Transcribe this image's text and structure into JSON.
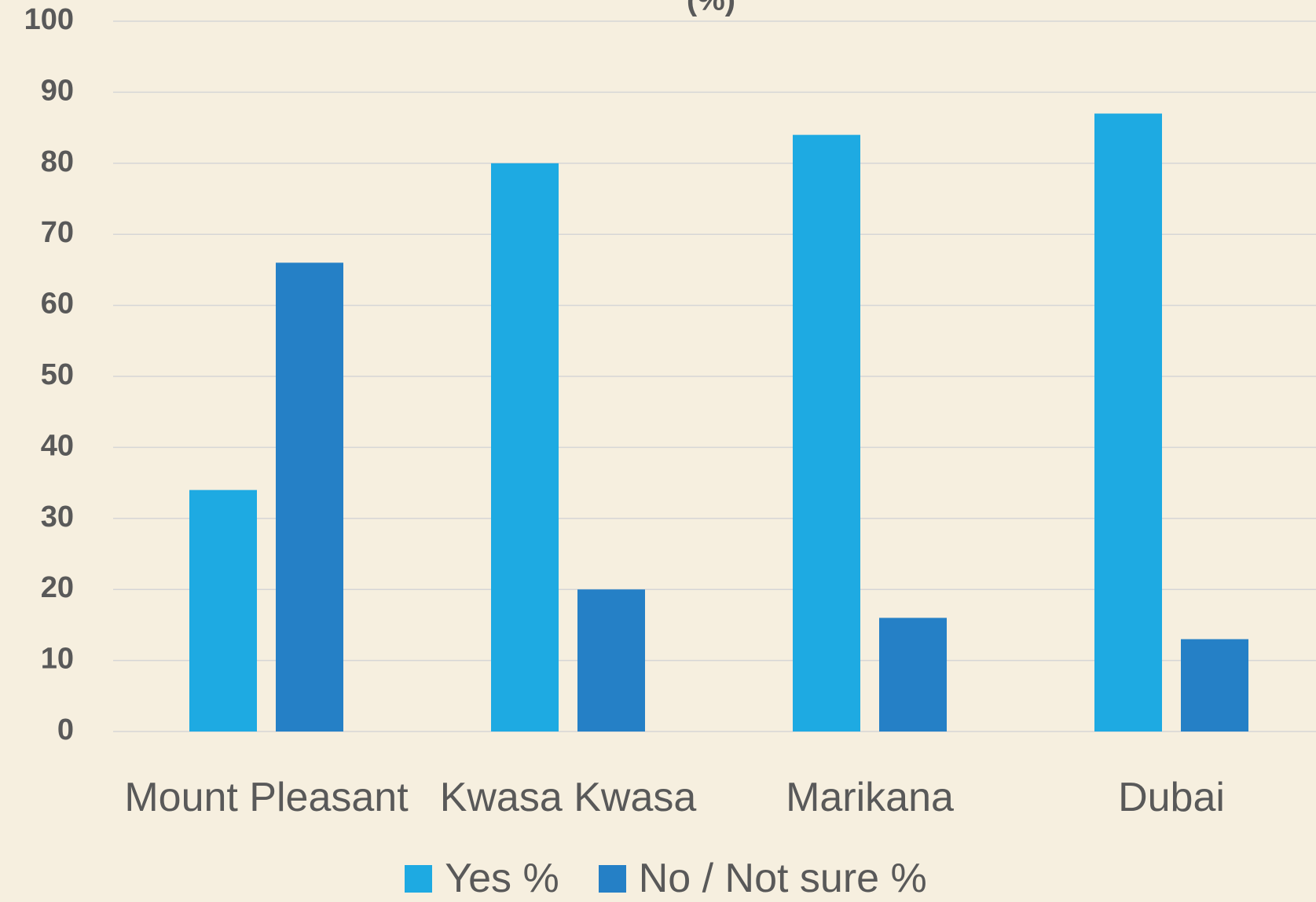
{
  "chart_data": {
    "type": "bar",
    "title": "(%)",
    "categories": [
      "Mount Pleasant",
      "Kwasa Kwasa",
      "Marikana",
      "Dubai"
    ],
    "series": [
      {
        "name": "Yes %",
        "color": "#1eaae2",
        "values": [
          34,
          80,
          84,
          87
        ]
      },
      {
        "name": "No / Not sure %",
        "color": "#2580c6",
        "values": [
          66,
          20,
          16,
          13
        ]
      }
    ],
    "ylim": [
      0,
      100
    ],
    "yticks": [
      0,
      10,
      20,
      30,
      40,
      50,
      60,
      70,
      80,
      90,
      100
    ],
    "grid": true,
    "legend": "bottom"
  }
}
